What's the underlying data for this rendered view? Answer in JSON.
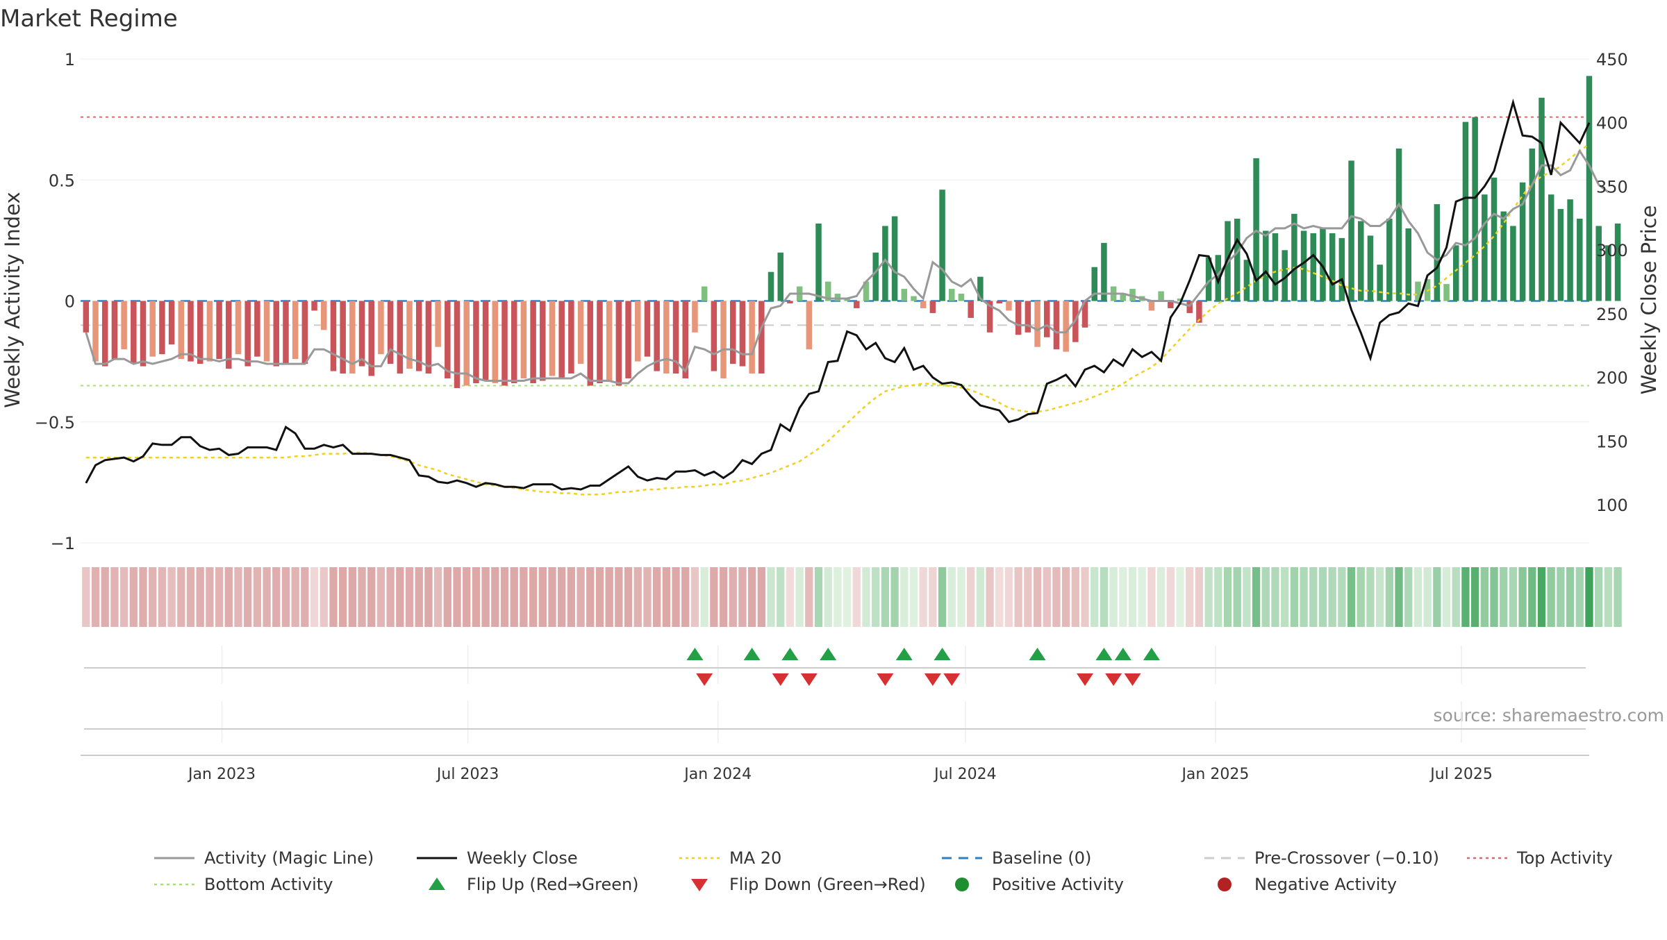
{
  "chart_data": {
    "type": "bar",
    "title": "Market Regime",
    "y_left_label": "Weekly Activity Index",
    "y_right_label": "Weekly Close Price",
    "y_left_ticks": [
      "1",
      "0.5",
      "0",
      "−0.5",
      "−1"
    ],
    "y_left_tick_values": [
      1,
      0.5,
      0,
      -0.5,
      -1
    ],
    "y_left_range": [
      -1,
      1
    ],
    "y_right_ticks": [
      "450",
      "400",
      "350",
      "300",
      "250",
      "200",
      "150",
      "100"
    ],
    "y_right_tick_values": [
      450,
      400,
      350,
      300,
      250,
      200,
      150,
      100
    ],
    "y_right_range": [
      70,
      450
    ],
    "x_ticks": [
      "Jan 2023",
      "Jul 2023",
      "Jan 2024",
      "Jul 2024",
      "Jan 2025",
      "Jul 2025"
    ],
    "x_tick_values": [
      "2023-01-01",
      "2023-07-01",
      "2024-01-01",
      "2024-07-01",
      "2025-01-01",
      "2025-07-01"
    ],
    "week_start": "2022-09-23",
    "x_range": [
      "2022-09-19",
      "2025-10-03"
    ],
    "activity": [
      -0.13,
      -0.25,
      -0.27,
      -0.24,
      -0.2,
      -0.26,
      -0.27,
      -0.23,
      -0.22,
      -0.18,
      -0.24,
      -0.25,
      -0.26,
      -0.25,
      -0.24,
      -0.28,
      -0.22,
      -0.27,
      -0.23,
      -0.25,
      -0.27,
      -0.26,
      -0.24,
      -0.26,
      -0.04,
      -0.12,
      -0.29,
      -0.3,
      -0.3,
      -0.27,
      -0.31,
      -0.22,
      -0.26,
      -0.3,
      -0.28,
      -0.29,
      -0.3,
      -0.19,
      -0.32,
      -0.36,
      -0.35,
      -0.34,
      -0.33,
      -0.34,
      -0.35,
      -0.34,
      -0.32,
      -0.34,
      -0.33,
      -0.31,
      -0.32,
      -0.3,
      -0.26,
      -0.35,
      -0.34,
      -0.33,
      -0.35,
      -0.32,
      -0.25,
      -0.23,
      -0.29,
      -0.3,
      -0.3,
      -0.32,
      -0.13,
      0.06,
      -0.29,
      -0.32,
      -0.26,
      -0.27,
      -0.3,
      -0.3,
      0.12,
      0.2,
      -0.01,
      0.06,
      -0.2,
      0.32,
      0.08,
      0.03,
      0.01,
      -0.03,
      0.08,
      0.2,
      0.31,
      0.35,
      0.05,
      0.02,
      -0.03,
      -0.05,
      0.46,
      0.05,
      0.03,
      -0.07,
      0.1,
      -0.13,
      -0.01,
      -0.04,
      -0.14,
      -0.13,
      -0.19,
      -0.15,
      -0.2,
      -0.21,
      -0.17,
      -0.11,
      0.14,
      0.24,
      0.06,
      0.03,
      0.05,
      0.02,
      -0.04,
      0.04,
      -0.03,
      0.01,
      -0.05,
      -0.09,
      0.18,
      0.19,
      0.33,
      0.34,
      0.17,
      0.59,
      0.29,
      0.28,
      0.21,
      0.36,
      0.29,
      0.28,
      0.3,
      0.28,
      0.26,
      0.58,
      0.33,
      0.27,
      0.15,
      0.34,
      0.63,
      0.3,
      0.08,
      0.09,
      0.4,
      0.07,
      0.23,
      0.74,
      0.76,
      0.44,
      0.51,
      0.37,
      0.31,
      0.49,
      0.63,
      0.84,
      0.44,
      0.38,
      0.42,
      0.34,
      0.93,
      0.31,
      0.23,
      0.32
    ],
    "magic_line": [
      -0.13,
      -0.26,
      -0.26,
      -0.24,
      -0.24,
      -0.26,
      -0.25,
      -0.26,
      -0.25,
      -0.24,
      -0.22,
      -0.22,
      -0.24,
      -0.24,
      -0.25,
      -0.24,
      -0.24,
      -0.25,
      -0.25,
      -0.26,
      -0.26,
      -0.26,
      -0.26,
      -0.26,
      -0.2,
      -0.2,
      -0.22,
      -0.24,
      -0.26,
      -0.24,
      -0.27,
      -0.27,
      -0.2,
      -0.22,
      -0.24,
      -0.25,
      -0.27,
      -0.26,
      -0.29,
      -0.3,
      -0.3,
      -0.32,
      -0.33,
      -0.33,
      -0.33,
      -0.33,
      -0.33,
      -0.32,
      -0.32,
      -0.32,
      -0.32,
      -0.32,
      -0.3,
      -0.33,
      -0.33,
      -0.33,
      -0.34,
      -0.34,
      -0.3,
      -0.27,
      -0.25,
      -0.24,
      -0.25,
      -0.29,
      -0.19,
      -0.2,
      -0.22,
      -0.2,
      -0.2,
      -0.22,
      -0.22,
      -0.11,
      -0.03,
      -0.02,
      0.03,
      0.03,
      0.03,
      0.02,
      0.01,
      0.01,
      0.01,
      0.02,
      0.08,
      0.12,
      0.17,
      0.12,
      0.1,
      0.05,
      0.01,
      0.16,
      0.13,
      0.08,
      0.06,
      0.09,
      0.01,
      -0.02,
      -0.04,
      -0.08,
      -0.1,
      -0.1,
      -0.12,
      -0.1,
      -0.13,
      -0.13,
      -0.08,
      0.0,
      0.03,
      0.03,
      0.03,
      0.03,
      0.02,
      0.01,
      0.0,
      0.0,
      0.0,
      -0.01,
      -0.02,
      0.03,
      0.08,
      0.11,
      0.16,
      0.2,
      0.26,
      0.29,
      0.27,
      0.3,
      0.3,
      0.32,
      0.3,
      0.31,
      0.3,
      0.3,
      0.3,
      0.35,
      0.34,
      0.31,
      0.31,
      0.34,
      0.4,
      0.33,
      0.28,
      0.2,
      0.17,
      0.19,
      0.24,
      0.23,
      0.26,
      0.32,
      0.36,
      0.34,
      0.38,
      0.4,
      0.48,
      0.56,
      0.56,
      0.52,
      0.54,
      0.62,
      0.56,
      0.48,
      0.45
    ],
    "weekly_close": [
      117,
      131,
      135,
      136,
      137,
      134,
      138,
      148,
      147,
      147,
      153,
      153,
      146,
      143,
      144,
      139,
      140,
      145,
      145,
      145,
      143,
      161,
      156,
      144,
      144,
      147,
      145,
      147,
      140,
      140,
      140,
      139,
      139,
      137,
      135,
      123,
      122,
      118,
      117,
      119,
      117,
      114,
      117,
      116,
      114,
      114,
      113,
      116,
      116,
      116,
      112,
      113,
      112,
      115,
      115,
      120,
      125,
      130,
      122,
      119,
      121,
      120,
      126,
      126,
      127,
      123,
      126,
      121,
      126,
      135,
      132,
      140,
      143,
      163,
      158,
      176,
      187,
      189,
      212,
      213,
      236,
      233,
      222,
      227,
      215,
      212,
      223,
      206,
      209,
      200,
      195,
      196,
      194,
      185,
      178,
      176,
      174,
      165,
      167,
      171,
      172,
      195,
      198,
      202,
      193,
      206,
      209,
      204,
      214,
      209,
      222,
      216,
      220,
      213,
      247,
      258,
      276,
      296,
      295,
      275,
      293,
      308,
      297,
      276,
      283,
      273,
      278,
      285,
      290,
      296,
      287,
      273,
      277,
      253,
      235,
      215,
      243,
      249,
      251,
      258,
      256,
      280,
      286,
      302,
      338,
      341,
      341,
      350,
      362,
      389,
      416,
      390,
      389,
      384,
      359,
      400,
      392,
      384,
      400
    ],
    "ma20": [
      137,
      137,
      137,
      137,
      137,
      137,
      137,
      137,
      137,
      137,
      137,
      137,
      137,
      137,
      137,
      137,
      137,
      137,
      137,
      137,
      137,
      137,
      138,
      138,
      139,
      140,
      140,
      140,
      141,
      141,
      140,
      139,
      138,
      136,
      134,
      131,
      129,
      127,
      124,
      122,
      120,
      118,
      116,
      115,
      114,
      113,
      112,
      111,
      110,
      110,
      109,
      109,
      108,
      108,
      108,
      109,
      110,
      110,
      111,
      112,
      112,
      113,
      113,
      114,
      114,
      115,
      116,
      116,
      118,
      119,
      121,
      123,
      125,
      128,
      131,
      134,
      139,
      144,
      150,
      157,
      164,
      171,
      178,
      184,
      189,
      191,
      193,
      194,
      195,
      195,
      194,
      193,
      192,
      190,
      187,
      184,
      180,
      176,
      174,
      173,
      173,
      174,
      176,
      178,
      180,
      182,
      185,
      188,
      191,
      195,
      200,
      204,
      208,
      214,
      222,
      230,
      238,
      245,
      252,
      258,
      262,
      266,
      271,
      276,
      280,
      283,
      285,
      286,
      285,
      282,
      279,
      276,
      272,
      270,
      268,
      268,
      267,
      266,
      266,
      265,
      265,
      268,
      272,
      278,
      284,
      290,
      296,
      303,
      311,
      321,
      332,
      343,
      352,
      358,
      361,
      366,
      372,
      378,
      383
    ],
    "flip_up_weeks": [
      64,
      70,
      74,
      78,
      86,
      90,
      100,
      107,
      109,
      112
    ],
    "flip_down_weeks": [
      65,
      73,
      76,
      84,
      89,
      91,
      105,
      108,
      110
    ],
    "pre_crossover": -0.1,
    "top_activity": 0.76,
    "bottom_activity": -0.35,
    "baseline": 0,
    "source_text": "source: sharemaestro.com",
    "colors": {
      "strong_positive": "#2e8b57",
      "weak_positive": "#7fbf7f",
      "strong_negative": "#c9545a",
      "weak_negative": "#e8967a",
      "magic_line": "#999999",
      "weekly_close": "#111111",
      "ma20": "#f0d020",
      "baseline": "#2f7fbf",
      "pre_crossover": "#cccccc",
      "top": "#d46a6a",
      "bottom": "#a8e070",
      "flip_up": "#22a045",
      "flip_down": "#d63030",
      "positive_dot": "#1e8f30",
      "negative_dot": "#b22222"
    },
    "legend": [
      {
        "label": "Activity (Magic Line)",
        "kind": "line",
        "color": "#999999"
      },
      {
        "label": "Weekly Close",
        "kind": "line",
        "color": "#111111"
      },
      {
        "label": "MA 20",
        "kind": "dotted",
        "color": "#f0d020"
      },
      {
        "label": "Baseline (0)",
        "kind": "dashed",
        "color": "#2f7fbf"
      },
      {
        "label": "Pre-Crossover (−0.10)",
        "kind": "dashed",
        "color": "#cccccc"
      },
      {
        "label": "Top Activity",
        "kind": "dotted",
        "color": "#d46a6a"
      },
      {
        "label": "Bottom Activity",
        "kind": "dotted",
        "color": "#a8e070"
      },
      {
        "label": "Flip Up (Red→Green)",
        "kind": "triangle-up",
        "color": "#22a045"
      },
      {
        "label": "Flip Down (Green→Red)",
        "kind": "triangle-down",
        "color": "#d63030"
      },
      {
        "label": "Positive Activity",
        "kind": "dot",
        "color": "#1e8f30"
      },
      {
        "label": "Negative Activity",
        "kind": "dot",
        "color": "#b22222"
      }
    ]
  }
}
